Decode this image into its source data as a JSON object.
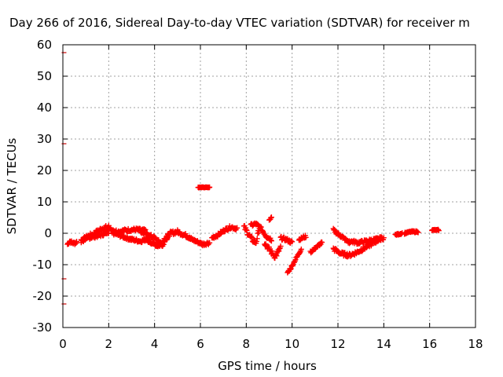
{
  "chart_data": {
    "type": "scatter",
    "title": "Day 266 of 2016, Sidereal Day-to-day VTEC variation (SDTVAR) for receiver m",
    "xlabel": "GPS time / hours",
    "ylabel": "SDTVAR / TECUs",
    "xlim": [
      0,
      18
    ],
    "ylim": [
      -30,
      60
    ],
    "xticks": [
      0,
      2,
      4,
      6,
      8,
      10,
      12,
      14,
      16,
      18
    ],
    "yticks": [
      -30,
      -20,
      -10,
      0,
      10,
      20,
      30,
      40,
      50,
      60
    ],
    "grid": true,
    "marker": "plus",
    "color": "#ff0000",
    "outlier_color": "#cc0000",
    "outliers": [
      {
        "x": 0.05,
        "y": 57.5
      },
      {
        "x": 0.05,
        "y": 28.5
      },
      {
        "x": 0.05,
        "y": -14.5
      },
      {
        "x": 0.05,
        "y": -22.5
      }
    ],
    "series": [
      {
        "name": "SDTVAR",
        "segments": [
          {
            "x0": 0.2,
            "x1": 0.6,
            "y": [
              -3.5,
              -2.5,
              -3.0,
              -3.2,
              -2.8
            ],
            "spread": 1.0
          },
          {
            "x0": 0.8,
            "x1": 2.0,
            "y": [
              -2.5,
              -1.0,
              0.0,
              1.5,
              2.0
            ],
            "spread": 1.3
          },
          {
            "x0": 0.8,
            "x1": 2.0,
            "y": [
              -2.0,
              -1.5,
              -1.0,
              -0.5,
              0.5
            ],
            "spread": 1.0
          },
          {
            "x0": 2.0,
            "x1": 3.6,
            "y": [
              1.5,
              0.5,
              1.0,
              1.2,
              0.8
            ],
            "spread": 1.0
          },
          {
            "x0": 2.2,
            "x1": 3.8,
            "y": [
              0.0,
              -1.0,
              -2.0,
              -2.5,
              -1.5
            ],
            "spread": 1.0
          },
          {
            "x0": 3.4,
            "x1": 4.6,
            "y": [
              0.5,
              -0.5,
              -1.5,
              -3.5,
              -1.0
            ],
            "spread": 1.2
          },
          {
            "x0": 3.6,
            "x1": 4.4,
            "y": [
              -2.0,
              -3.0,
              -4.0,
              -3.5
            ],
            "spread": 1.0
          },
          {
            "x0": 4.4,
            "x1": 5.6,
            "y": [
              -2.0,
              0.0,
              0.5,
              -0.5,
              -1.5
            ],
            "spread": 1.2
          },
          {
            "x0": 5.5,
            "x1": 6.4,
            "y": [
              -1.5,
              -2.5,
              -3.5,
              -3.0
            ],
            "spread": 1.0
          },
          {
            "x0": 5.9,
            "x1": 6.4,
            "y": [
              14.6,
              14.6,
              14.6
            ],
            "spread": 0.2
          },
          {
            "x0": 6.5,
            "x1": 7.6,
            "y": [
              -1.5,
              -0.5,
              1.0,
              2.0,
              1.5
            ],
            "spread": 1.0
          },
          {
            "x0": 7.9,
            "x1": 8.6,
            "y": [
              2.0,
              0.0,
              -2.0,
              -3.0,
              2.5
            ],
            "spread": 1.5
          },
          {
            "x0": 8.2,
            "x1": 9.1,
            "y": [
              2.5,
              3.0,
              1.5,
              -1.0,
              -2.0
            ],
            "spread": 1.0
          },
          {
            "x0": 8.8,
            "x1": 9.5,
            "y": [
              -3.0,
              -5.5,
              -7.5,
              -4.5
            ],
            "spread": 1.5
          },
          {
            "x0": 9.0,
            "x1": 9.1,
            "y": [
              4.0,
              5.0
            ],
            "spread": 0.5
          },
          {
            "x0": 9.5,
            "x1": 10.0,
            "y": [
              -1.5,
              -2.0,
              -3.0
            ],
            "spread": 1.0
          },
          {
            "x0": 9.8,
            "x1": 10.4,
            "y": [
              -12.5,
              -11.0,
              -9.0,
              -7.0,
              -5.0
            ],
            "spread": 0.8
          },
          {
            "x0": 10.3,
            "x1": 10.6,
            "y": [
              -2.0,
              -1.0
            ],
            "spread": 0.8
          },
          {
            "x0": 10.8,
            "x1": 11.3,
            "y": [
              -6.0,
              -5.0,
              -4.0,
              -3.0
            ],
            "spread": 0.8
          },
          {
            "x0": 11.8,
            "x1": 12.5,
            "y": [
              1.0,
              0.0,
              -1.0,
              -2.0,
              -3.0
            ],
            "spread": 1.0
          },
          {
            "x0": 11.8,
            "x1": 13.9,
            "y": [
              -5.0,
              -6.5,
              -7.0,
              -6.0,
              -4.5,
              -3.0,
              -1.5
            ],
            "spread": 1.2
          },
          {
            "x0": 12.5,
            "x1": 14.0,
            "y": [
              -2.5,
              -3.0,
              -2.5,
              -2.0,
              -1.5
            ],
            "spread": 1.0
          },
          {
            "x0": 14.5,
            "x1": 14.8,
            "y": [
              -0.5,
              0.0
            ],
            "spread": 0.5
          },
          {
            "x0": 14.9,
            "x1": 15.5,
            "y": [
              0.0,
              0.5,
              0.5
            ],
            "spread": 0.5
          },
          {
            "x0": 16.1,
            "x1": 16.4,
            "y": [
              1.0,
              1.0
            ],
            "spread": 0.4
          }
        ]
      }
    ]
  }
}
